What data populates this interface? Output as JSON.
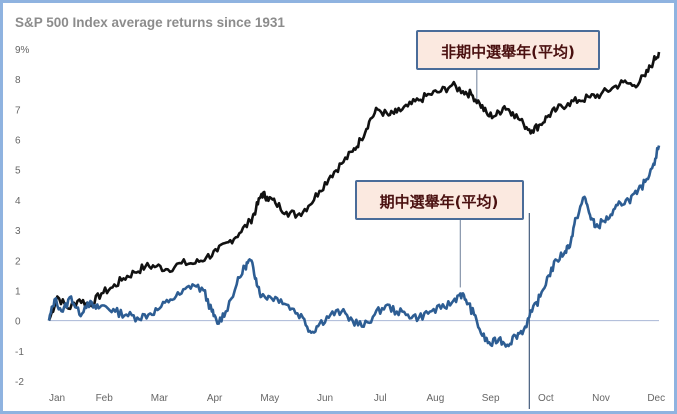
{
  "chart_data": {
    "type": "line",
    "title": "S&P 500 Index average returns since 1931",
    "xlabel": "",
    "ylabel": "",
    "x_ticks": [
      "Jan",
      "Feb",
      "Mar",
      "Apr",
      "May",
      "Jun",
      "Jul",
      "Aug",
      "Sep",
      "Oct",
      "Nov",
      "Dec"
    ],
    "y_ticks": [
      "9%",
      "8",
      "7",
      "6",
      "5",
      "4",
      "3",
      "2",
      "1",
      "0",
      "-1",
      "-2"
    ],
    "ylim": [
      -2,
      9
    ],
    "grid": false,
    "zero_line": true,
    "colors": {
      "non_midterm": "#111111",
      "midterm": "#2d5d93",
      "callout_fill": "#fbe9e0",
      "callout_border": "#4a6c99",
      "frame": "#8fb3e0"
    },
    "series": [
      {
        "name": "非期中選舉年(平均)",
        "points": [
          [
            0.0,
            0.0
          ],
          [
            0.15,
            0.8
          ],
          [
            0.35,
            0.4
          ],
          [
            0.55,
            0.7
          ],
          [
            0.75,
            0.5
          ],
          [
            0.95,
            0.9
          ],
          [
            1.15,
            1.1
          ],
          [
            1.35,
            1.4
          ],
          [
            1.55,
            1.6
          ],
          [
            1.75,
            1.8
          ],
          [
            1.95,
            1.8
          ],
          [
            2.15,
            1.7
          ],
          [
            2.4,
            1.9
          ],
          [
            2.65,
            1.9
          ],
          [
            2.85,
            2.1
          ],
          [
            3.05,
            2.3
          ],
          [
            3.25,
            2.6
          ],
          [
            3.45,
            2.9
          ],
          [
            3.65,
            3.3
          ],
          [
            3.75,
            3.7
          ],
          [
            3.85,
            4.2
          ],
          [
            3.95,
            4.1
          ],
          [
            4.1,
            3.9
          ],
          [
            4.3,
            3.6
          ],
          [
            4.5,
            3.5
          ],
          [
            4.7,
            3.8
          ],
          [
            4.9,
            4.3
          ],
          [
            5.1,
            4.8
          ],
          [
            5.3,
            5.2
          ],
          [
            5.5,
            5.6
          ],
          [
            5.65,
            6.0
          ],
          [
            5.8,
            6.6
          ],
          [
            5.95,
            7.0
          ],
          [
            6.15,
            6.8
          ],
          [
            6.3,
            6.9
          ],
          [
            6.5,
            7.1
          ],
          [
            6.7,
            7.3
          ],
          [
            6.9,
            7.5
          ],
          [
            7.1,
            7.6
          ],
          [
            7.3,
            7.8
          ],
          [
            7.5,
            7.6
          ],
          [
            7.65,
            7.5
          ],
          [
            7.8,
            7.2
          ],
          [
            7.95,
            6.8
          ],
          [
            8.1,
            6.8
          ],
          [
            8.25,
            7.1
          ],
          [
            8.4,
            6.9
          ],
          [
            8.6,
            6.5
          ],
          [
            8.75,
            6.3
          ],
          [
            8.9,
            6.5
          ],
          [
            9.05,
            6.8
          ],
          [
            9.2,
            7.0
          ],
          [
            9.4,
            7.2
          ],
          [
            9.6,
            7.3
          ],
          [
            9.8,
            7.4
          ],
          [
            10.0,
            7.5
          ],
          [
            10.2,
            7.7
          ],
          [
            10.4,
            7.9
          ],
          [
            10.6,
            7.8
          ],
          [
            10.8,
            8.1
          ],
          [
            10.95,
            8.6
          ],
          [
            11.05,
            8.9
          ]
        ]
      },
      {
        "name": "期中選舉年(平均)",
        "points": [
          [
            0.0,
            0.0
          ],
          [
            0.1,
            0.7
          ],
          [
            0.25,
            0.3
          ],
          [
            0.4,
            0.8
          ],
          [
            0.55,
            0.2
          ],
          [
            0.7,
            0.6
          ],
          [
            0.85,
            0.4
          ],
          [
            1.0,
            0.5
          ],
          [
            1.2,
            0.3
          ],
          [
            1.4,
            0.2
          ],
          [
            1.6,
            0.1
          ],
          [
            1.8,
            0.2
          ],
          [
            2.0,
            0.4
          ],
          [
            2.2,
            0.7
          ],
          [
            2.4,
            0.9
          ],
          [
            2.6,
            1.2
          ],
          [
            2.8,
            1.0
          ],
          [
            2.95,
            0.3
          ],
          [
            3.05,
            -0.1
          ],
          [
            3.2,
            0.3
          ],
          [
            3.4,
            1.2
          ],
          [
            3.55,
            1.8
          ],
          [
            3.65,
            2.0
          ],
          [
            3.75,
            1.4
          ],
          [
            3.85,
            0.8
          ],
          [
            4.0,
            0.8
          ],
          [
            4.2,
            0.7
          ],
          [
            4.4,
            0.4
          ],
          [
            4.6,
            0.1
          ],
          [
            4.75,
            -0.4
          ],
          [
            4.9,
            -0.1
          ],
          [
            5.1,
            0.2
          ],
          [
            5.3,
            0.3
          ],
          [
            5.5,
            0.0
          ],
          [
            5.7,
            -0.2
          ],
          [
            5.9,
            0.2
          ],
          [
            6.1,
            0.5
          ],
          [
            6.3,
            0.3
          ],
          [
            6.5,
            0.2
          ],
          [
            6.7,
            0.1
          ],
          [
            6.9,
            0.3
          ],
          [
            7.1,
            0.4
          ],
          [
            7.3,
            0.6
          ],
          [
            7.45,
            0.9
          ],
          [
            7.55,
            0.7
          ],
          [
            7.7,
            0.2
          ],
          [
            7.85,
            -0.5
          ],
          [
            8.0,
            -0.8
          ],
          [
            8.15,
            -0.6
          ],
          [
            8.3,
            -0.8
          ],
          [
            8.45,
            -0.5
          ],
          [
            8.6,
            -0.3
          ],
          [
            8.75,
            0.3
          ],
          [
            8.9,
            0.8
          ],
          [
            9.05,
            1.5
          ],
          [
            9.2,
            2.0
          ],
          [
            9.35,
            2.3
          ],
          [
            9.45,
            2.6
          ],
          [
            9.55,
            3.4
          ],
          [
            9.7,
            4.1
          ],
          [
            9.8,
            3.5
          ],
          [
            9.9,
            3.1
          ],
          [
            10.05,
            3.3
          ],
          [
            10.2,
            3.5
          ],
          [
            10.35,
            3.9
          ],
          [
            10.5,
            4.0
          ],
          [
            10.65,
            4.2
          ],
          [
            10.8,
            4.6
          ],
          [
            10.95,
            5.2
          ],
          [
            11.05,
            5.8
          ]
        ]
      }
    ],
    "callouts": [
      {
        "label": "非期中選舉年(平均)",
        "leader_from_x": 7.75
      },
      {
        "label": "期中選舉年(平均)",
        "leader_from_x": 7.45
      }
    ],
    "markers": [
      {
        "x": 8.7,
        "label": ""
      }
    ]
  }
}
